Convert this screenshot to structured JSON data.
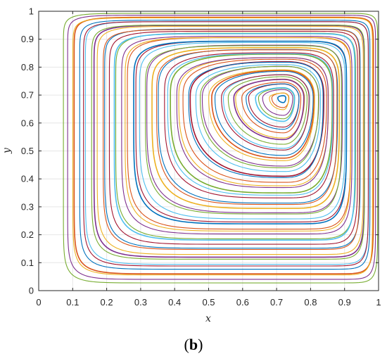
{
  "chart_data": {
    "type": "line",
    "subtype": "streamlines",
    "title": "",
    "xlabel": "x",
    "ylabel": "y",
    "xlim": [
      0,
      1
    ],
    "ylim": [
      0,
      1
    ],
    "x_ticks": [
      "0",
      "0.1",
      "0.2",
      "0.3",
      "0.4",
      "0.5",
      "0.6",
      "0.7",
      "0.8",
      "0.9",
      "1"
    ],
    "y_ticks": [
      "0",
      "0.1",
      "0.2",
      "0.3",
      "0.4",
      "0.5",
      "0.6",
      "0.7",
      "0.8",
      "0.9",
      "1"
    ],
    "grid": true,
    "vortex_center": {
      "x": 0.72,
      "y": 0.69
    },
    "outer_limit": {
      "x_min": 0.075,
      "x_max": 0.995,
      "y_min": 0.03,
      "y_max": 0.99
    },
    "num_streamlines": 54,
    "colors": [
      "#0072BD",
      "#D95319",
      "#EDB120",
      "#7E2F8E",
      "#77AC30",
      "#4DBEEE",
      "#A2142F"
    ]
  },
  "panel_label": {
    "open": "(",
    "letter": "b",
    "close": ")"
  }
}
